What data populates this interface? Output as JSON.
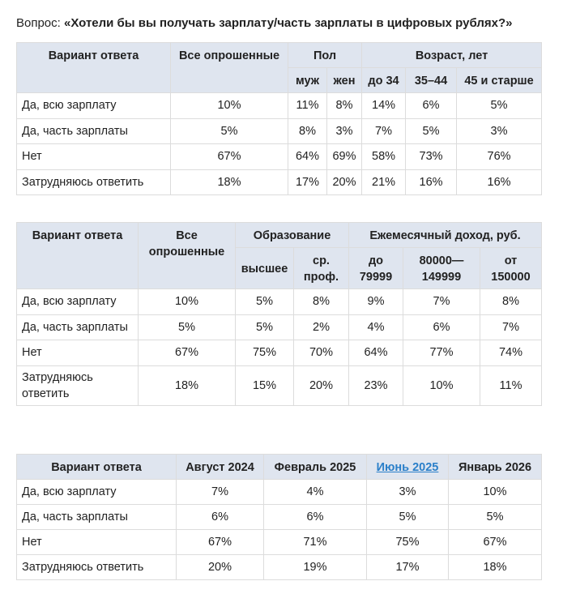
{
  "question": {
    "label": "Вопрос:",
    "text": "«Хотели бы вы получать зарплату/часть зарплаты в цифровых рублях?»"
  },
  "tables": [
    {
      "header": {
        "option": "Вариант ответа",
        "all": "Все опрошенные",
        "groups": [
          {
            "title": "Пол",
            "columns": [
              "муж",
              "жен"
            ]
          },
          {
            "title": "Возраст, лет",
            "columns": [
              "до 34",
              "35–44",
              "45 и старше"
            ]
          }
        ]
      },
      "rows": [
        [
          "Да, всю зарплату",
          "10%",
          "11%",
          "8%",
          "14%",
          "6%",
          "5%"
        ],
        [
          "Да, часть зарплаты",
          "5%",
          "8%",
          "3%",
          "7%",
          "5%",
          "3%"
        ],
        [
          "Нет",
          "67%",
          "64%",
          "69%",
          "58%",
          "73%",
          "76%"
        ],
        [
          "Затрудняюсь ответить",
          "18%",
          "17%",
          "20%",
          "21%",
          "16%",
          "16%"
        ]
      ]
    },
    {
      "header": {
        "option": "Вариант ответа",
        "all": "Все опрошенные",
        "groups": [
          {
            "title": "Образование",
            "columns": [
              "высшее",
              "ср. проф."
            ]
          },
          {
            "title": "Ежемесячный доход, руб.",
            "columns": [
              "до 79999",
              "80000—149999",
              "от 150000"
            ]
          }
        ]
      },
      "rows": [
        [
          "Да, всю зарплату",
          "10%",
          "5%",
          "8%",
          "9%",
          "7%",
          "8%"
        ],
        [
          "Да, часть зарплаты",
          "5%",
          "5%",
          "2%",
          "4%",
          "6%",
          "7%"
        ],
        [
          "Нет",
          "67%",
          "75%",
          "70%",
          "64%",
          "77%",
          "74%"
        ],
        [
          "Затрудняюсь ответить",
          "18%",
          "15%",
          "20%",
          "23%",
          "10%",
          "11%"
        ]
      ]
    },
    {
      "header": {
        "columns": [
          "Вариант ответа",
          "Август 2024",
          "Февраль 2025",
          "Июнь 2025",
          "Январь 2026"
        ],
        "link_column": 3
      },
      "rows": [
        [
          "Да, всю зарплату",
          "7%",
          "4%",
          "3%",
          "10%"
        ],
        [
          "Да, часть зарплаты",
          "6%",
          "6%",
          "5%",
          "5%"
        ],
        [
          "Нет",
          "67%",
          "71%",
          "75%",
          "67%"
        ],
        [
          "Затрудняюсь ответить",
          "20%",
          "19%",
          "17%",
          "18%"
        ]
      ]
    }
  ]
}
